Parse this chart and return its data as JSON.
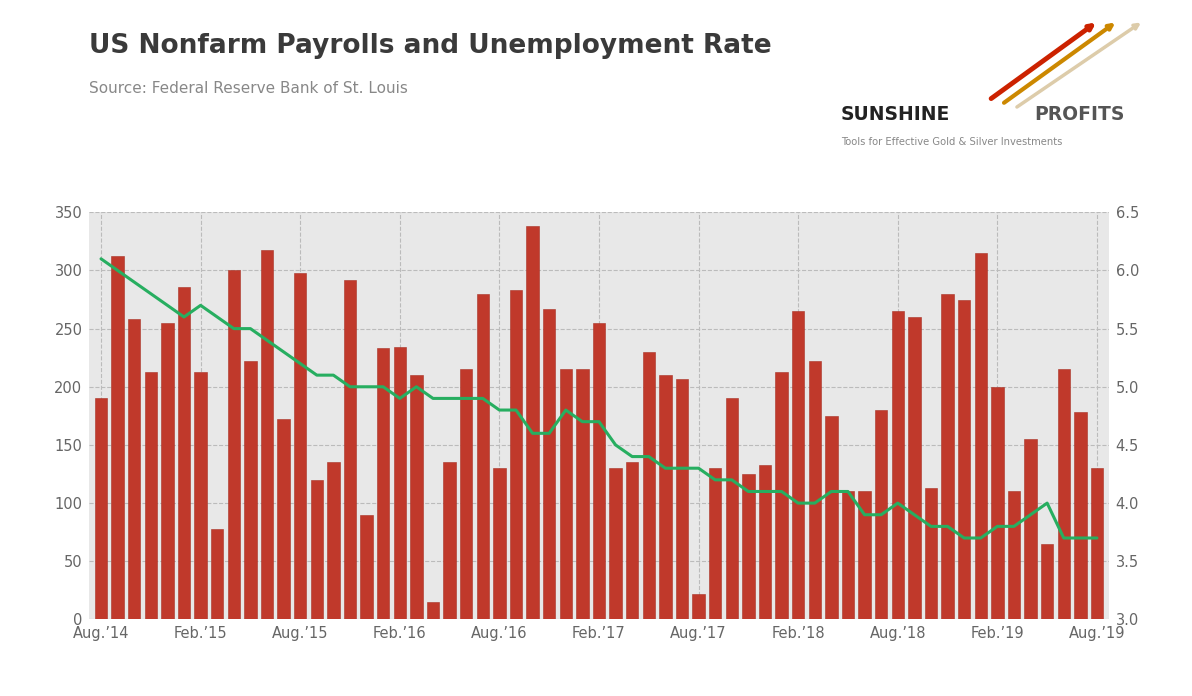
{
  "title": "US Nonfarm Payrolls and Unemployment Rate",
  "subtitle": "Source: Federal Reserve Bank of St. Louis",
  "title_color": "#3a3a3a",
  "subtitle_color": "#888888",
  "outer_bg": "#f0f0f0",
  "card_bg": "#ffffff",
  "plot_bg": "#e8e8e8",
  "bar_color": "#c0392b",
  "bar_edge_color": "#a93226",
  "line_color": "#27ae60",
  "left_ylim": [
    0,
    350
  ],
  "right_ylim": [
    3.0,
    6.5
  ],
  "left_yticks": [
    0,
    50,
    100,
    150,
    200,
    250,
    300,
    350
  ],
  "right_yticks": [
    3.0,
    3.5,
    4.0,
    4.5,
    5.0,
    5.5,
    6.0,
    6.5
  ],
  "xtick_labels": [
    "Aug.’14",
    "Feb.’15",
    "Aug.’15",
    "Feb.’16",
    "Aug.’16",
    "Feb.’17",
    "Aug.’17",
    "Feb.’18",
    "Aug.’18",
    "Feb.’19",
    "Aug.’19"
  ],
  "xtick_positions": [
    0,
    6,
    12,
    18,
    24,
    30,
    36,
    42,
    48,
    54,
    60
  ],
  "nonfarm_payrolls": [
    190,
    312,
    258,
    213,
    255,
    286,
    213,
    78,
    300,
    222,
    318,
    172,
    298,
    120,
    135,
    292,
    90,
    233,
    234,
    210,
    15,
    135,
    215,
    280,
    130,
    283,
    338,
    267,
    215,
    215,
    255,
    130,
    135,
    230,
    210,
    207,
    22,
    130,
    190,
    125,
    133,
    213,
    265,
    222,
    175,
    110,
    110,
    180,
    265,
    260,
    113,
    280,
    275,
    315,
    200,
    110,
    155,
    65,
    215,
    178,
    130
  ],
  "unemployment_rate": [
    6.1,
    6.0,
    5.9,
    5.8,
    5.7,
    5.6,
    5.7,
    5.6,
    5.5,
    5.5,
    5.4,
    5.3,
    5.2,
    5.1,
    5.1,
    5.0,
    5.0,
    5.0,
    4.9,
    5.0,
    4.9,
    4.9,
    4.9,
    4.9,
    4.8,
    4.8,
    4.6,
    4.6,
    4.8,
    4.7,
    4.7,
    4.5,
    4.4,
    4.4,
    4.3,
    4.3,
    4.3,
    4.2,
    4.2,
    4.1,
    4.1,
    4.1,
    4.0,
    4.0,
    4.1,
    4.1,
    3.9,
    3.9,
    4.0,
    3.9,
    3.8,
    3.8,
    3.7,
    3.7,
    3.8,
    3.8,
    3.9,
    4.0,
    3.7,
    3.7,
    3.7
  ]
}
